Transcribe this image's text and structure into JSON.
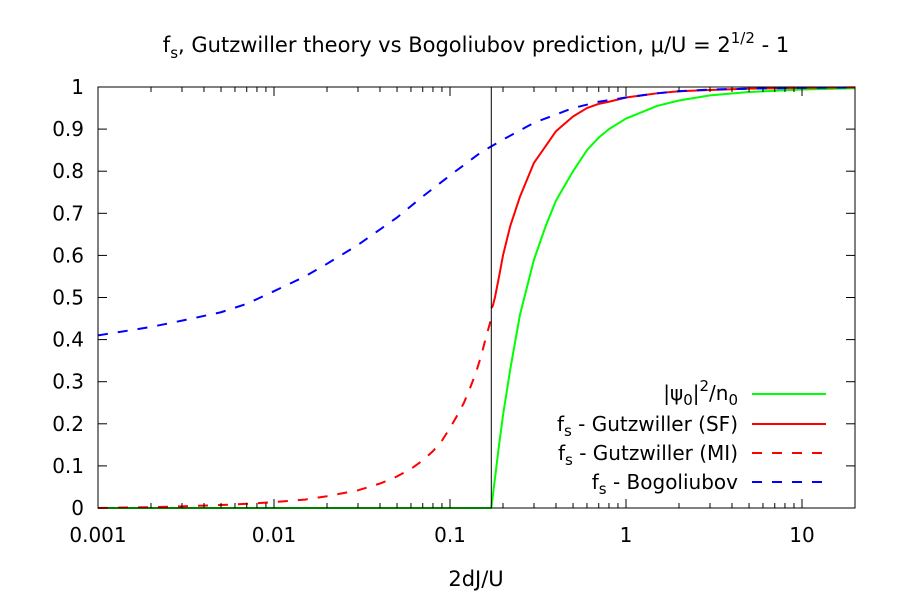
{
  "chart_data": {
    "type": "line",
    "title": {
      "part1": "f",
      "part1_sub": "s",
      "part2": ", Gutzwiller theory vs Bogoliubov prediction, μ/U = 2",
      "part2_sup": "1/2",
      "part3": " - 1"
    },
    "xlabel": "2dJ/U",
    "ylabel": "",
    "x_scale": "log",
    "xlim": [
      0.001,
      20
    ],
    "ylim": [
      0,
      1
    ],
    "x_ticks": [
      {
        "value": 0.001,
        "label": "0.001"
      },
      {
        "value": 0.01,
        "label": "0.01"
      },
      {
        "value": 0.1,
        "label": "0.1"
      },
      {
        "value": 1,
        "label": "1"
      },
      {
        "value": 10,
        "label": "10"
      }
    ],
    "y_ticks": [
      {
        "value": 0,
        "label": "0"
      },
      {
        "value": 0.1,
        "label": "0.1"
      },
      {
        "value": 0.2,
        "label": "0.2"
      },
      {
        "value": 0.3,
        "label": "0.3"
      },
      {
        "value": 0.4,
        "label": "0.4"
      },
      {
        "value": 0.5,
        "label": "0.5"
      },
      {
        "value": 0.6,
        "label": "0.6"
      },
      {
        "value": 0.7,
        "label": "0.7"
      },
      {
        "value": 0.8,
        "label": "0.8"
      },
      {
        "value": 0.9,
        "label": "0.9"
      },
      {
        "value": 1,
        "label": "1"
      }
    ],
    "vertical_line_x": 0.1716,
    "grid": false,
    "legend_position": "bottom-right",
    "series": [
      {
        "legend": {
          "text1": "|ψ",
          "sub1": "0",
          "text2": "|",
          "sup": "2",
          "text3": "/n",
          "sub2": "0"
        },
        "color": "#00ff00",
        "dash": "solid",
        "x": [
          0.001,
          0.01,
          0.1,
          0.1716,
          0.18,
          0.19,
          0.2,
          0.22,
          0.25,
          0.3,
          0.35,
          0.4,
          0.5,
          0.6,
          0.7,
          0.8,
          1.0,
          1.5,
          2.0,
          3.0,
          5.0,
          10.0,
          20.0
        ],
        "y": [
          0,
          0,
          0,
          0,
          0.07,
          0.15,
          0.22,
          0.33,
          0.46,
          0.59,
          0.67,
          0.73,
          0.8,
          0.85,
          0.88,
          0.9,
          0.925,
          0.955,
          0.968,
          0.98,
          0.988,
          0.994,
          0.997
        ]
      },
      {
        "legend": {
          "prefix": "f",
          "prefix_sub": "s",
          "text": " - Gutzwiller (SF)"
        },
        "color": "#ff0000",
        "dash": "solid",
        "x": [
          0.1716,
          0.175,
          0.18,
          0.19,
          0.2,
          0.22,
          0.25,
          0.3,
          0.35,
          0.4,
          0.5,
          0.6,
          0.7,
          0.8,
          1.0,
          1.5,
          2.0,
          3.0,
          5.0,
          10.0,
          20.0
        ],
        "y": [
          0.475,
          0.48,
          0.5,
          0.55,
          0.6,
          0.67,
          0.74,
          0.82,
          0.86,
          0.895,
          0.93,
          0.95,
          0.96,
          0.965,
          0.975,
          0.985,
          0.99,
          0.993,
          0.996,
          0.998,
          0.999
        ]
      },
      {
        "legend": {
          "prefix": "f",
          "prefix_sub": "s",
          "text": " - Gutzwiller (MI)"
        },
        "color": "#ff0000",
        "dash": "dashed",
        "x": [
          0.001,
          0.002,
          0.003,
          0.005,
          0.007,
          0.01,
          0.015,
          0.02,
          0.03,
          0.04,
          0.05,
          0.06,
          0.07,
          0.08,
          0.09,
          0.1,
          0.11,
          0.12,
          0.13,
          0.14,
          0.15,
          0.16,
          0.1716
        ],
        "y": [
          0,
          0.002,
          0.004,
          0.007,
          0.01,
          0.014,
          0.02,
          0.028,
          0.042,
          0.058,
          0.075,
          0.093,
          0.113,
          0.135,
          0.16,
          0.19,
          0.22,
          0.25,
          0.285,
          0.32,
          0.36,
          0.405,
          0.45
        ]
      },
      {
        "legend": {
          "prefix": "f",
          "prefix_sub": "s",
          "text": " - Bogoliubov"
        },
        "color": "#0000ff",
        "dash": "dashed",
        "x": [
          0.001,
          0.002,
          0.003,
          0.005,
          0.007,
          0.01,
          0.015,
          0.02,
          0.03,
          0.05,
          0.07,
          0.1,
          0.15,
          0.2,
          0.3,
          0.5,
          0.7,
          1.0,
          1.5,
          2.0,
          3.0,
          5.0,
          10.0,
          20.0
        ],
        "y": [
          0.41,
          0.43,
          0.445,
          0.465,
          0.485,
          0.515,
          0.55,
          0.58,
          0.625,
          0.69,
          0.74,
          0.79,
          0.845,
          0.875,
          0.915,
          0.95,
          0.965,
          0.975,
          0.985,
          0.99,
          0.994,
          0.996,
          0.998,
          0.999
        ]
      }
    ]
  }
}
